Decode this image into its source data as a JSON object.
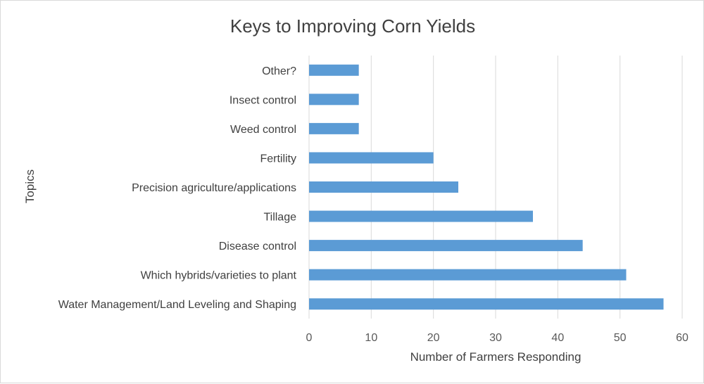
{
  "chart_data": {
    "type": "bar",
    "orientation": "horizontal",
    "title": "Keys to Improving Corn Yields",
    "xlabel": "Number of Farmers Responding",
    "ylabel": "Topics",
    "categories": [
      "Other?",
      "Insect control",
      "Weed control",
      "Fertility",
      "Precision agriculture/applications",
      "Tillage",
      "Disease control",
      "Which hybrids/varieties to plant",
      "Water Management/Land Leveling and Shaping"
    ],
    "values": [
      8,
      8,
      8,
      20,
      24,
      36,
      44,
      51,
      57
    ],
    "xlim": [
      0,
      60
    ],
    "xticks": [
      "0",
      "10",
      "20",
      "30",
      "40",
      "50",
      "60"
    ],
    "grid": "vertical",
    "legend": "none",
    "bar_color": "#5b9bd5",
    "grid_color": "#d9d9d9"
  }
}
